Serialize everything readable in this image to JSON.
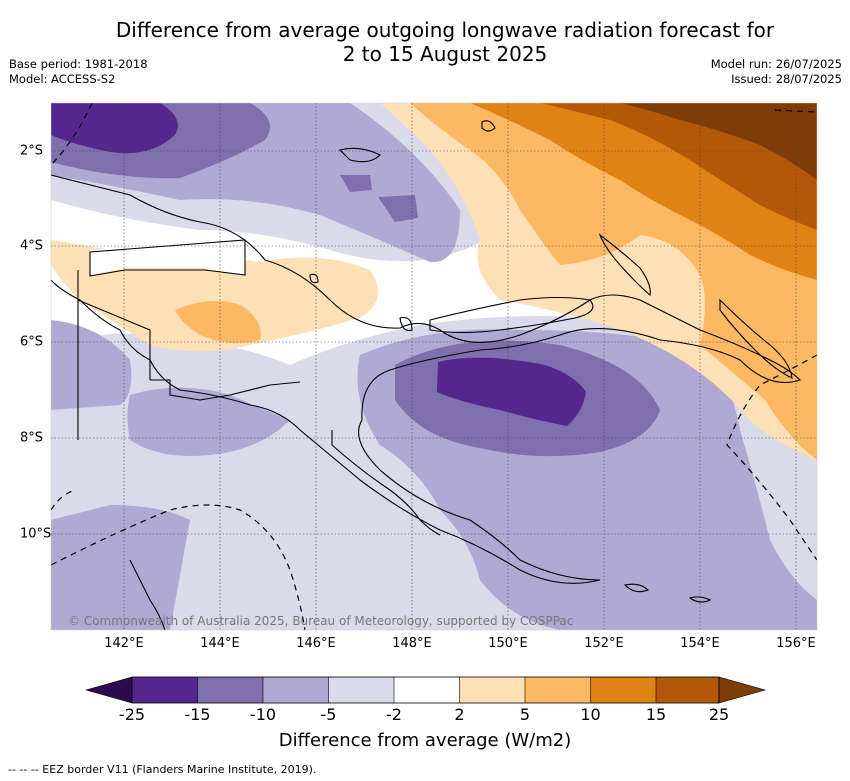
{
  "header": {
    "title_line1": "Difference from average outgoing longwave radiation forecast for",
    "title_line2": "2 to 15 August 2025",
    "base_period": "Base period: 1981-2018",
    "model": "Model: ACCESS-S2",
    "model_run": "Model run: 26/07/2025",
    "issued": "Issued: 28/07/2025"
  },
  "map": {
    "longitude_labels": [
      "142°E",
      "144°E",
      "146°E",
      "148°E",
      "150°E",
      "152°E",
      "154°E",
      "156°E"
    ],
    "latitude_labels": [
      "2°S",
      "4°S",
      "6°S",
      "8°S",
      "10°S"
    ],
    "credit": "© Commonwealth of Australia 2025, Bureau of Meteorology, supported by COSPPac"
  },
  "colorbar": {
    "title": "Difference from average (W/m2)",
    "tick_labels": [
      "-25",
      "-15",
      "-10",
      "-5",
      "-2",
      "2",
      "5",
      "10",
      "15",
      "25"
    ],
    "colors": [
      "#2e0a4e",
      "#54278f",
      "#7f6fad",
      "#b0a9d3",
      "#dadaeb",
      "#ffffff",
      "#fee0b6",
      "#fdb863",
      "#e08214",
      "#b35806",
      "#7f3b08"
    ]
  },
  "footnote": "--  --  -- EEZ border V11 (Flanders Marine Institute, 2019)."
}
